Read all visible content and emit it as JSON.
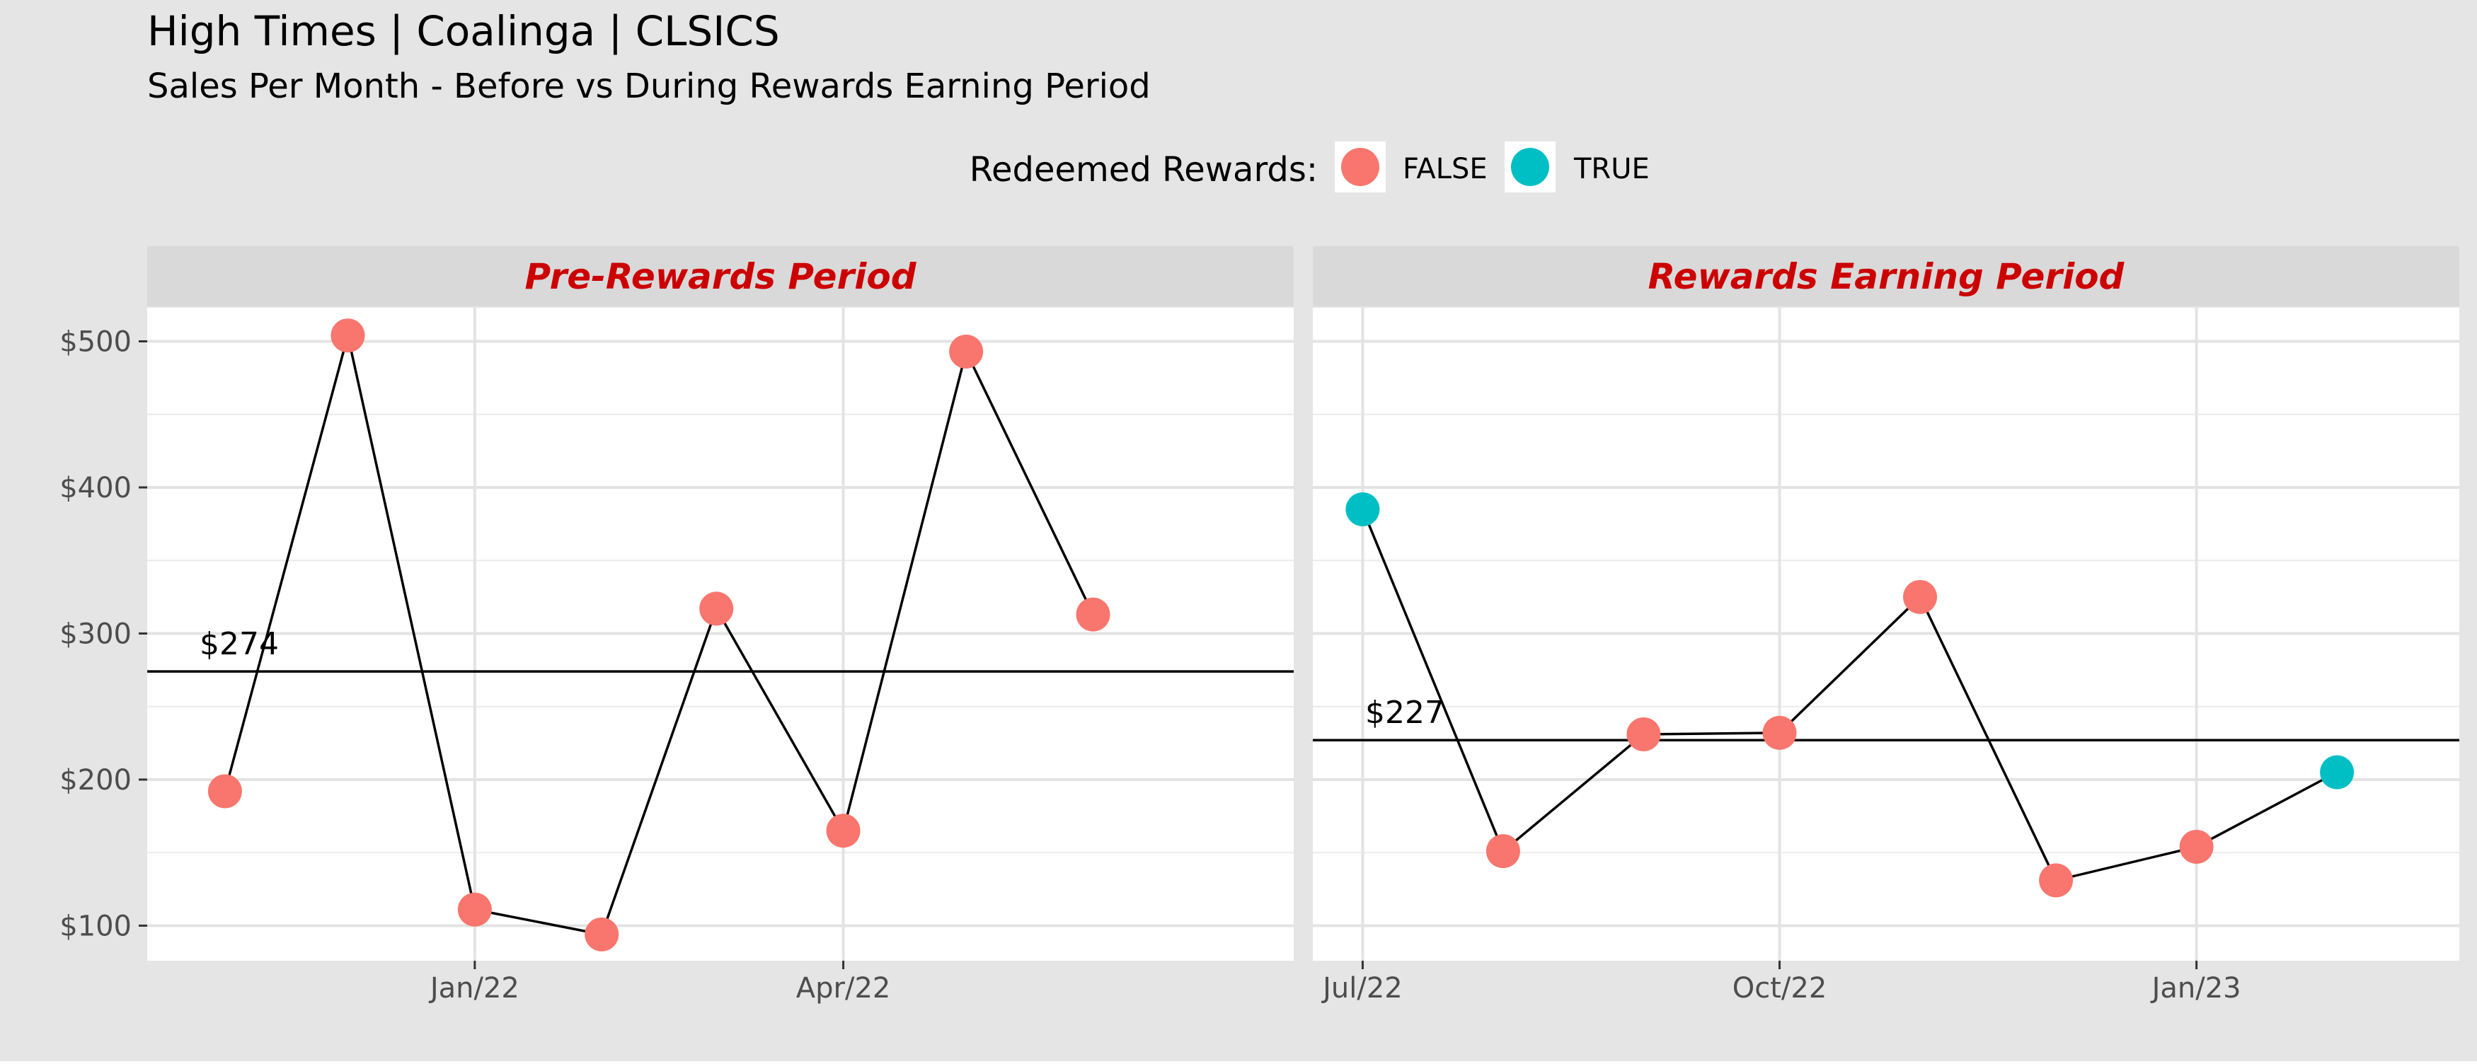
{
  "chart_data": {
    "type": "line",
    "title": "High Times | Coalinga | CLSICS",
    "subtitle": "Sales Per Month - Before vs During Rewards Earning Period",
    "legend": {
      "title": "Redeemed Rewards:",
      "placement": "top",
      "entries": [
        {
          "label": "FALSE",
          "color": "#F8766D"
        },
        {
          "label": "TRUE",
          "color": "#00BFC4"
        }
      ]
    },
    "y_ticks": [
      "$100",
      "$200",
      "$300",
      "$400",
      "$500"
    ],
    "ylim": [
      76,
      523
    ],
    "grid": true,
    "panels": [
      {
        "title": "Pre-Rewards Period",
        "x_ticks": [
          {
            "label": "Jan/22",
            "date": "2022-01-01"
          },
          {
            "label": "Apr/22",
            "date": "2022-04-01"
          }
        ],
        "xlim": [
          "2021-10-13",
          "2022-07-20"
        ],
        "mean": 274,
        "mean_label": "$274",
        "points": [
          {
            "date": "2021-11-01",
            "value": 192,
            "redeemed": false
          },
          {
            "date": "2021-12-01",
            "value": 504,
            "redeemed": false
          },
          {
            "date": "2022-01-01",
            "value": 111,
            "redeemed": false
          },
          {
            "date": "2022-02-01",
            "value": 94,
            "redeemed": false
          },
          {
            "date": "2022-03-01",
            "value": 317,
            "redeemed": false
          },
          {
            "date": "2022-04-01",
            "value": 165,
            "redeemed": false
          },
          {
            "date": "2022-05-01",
            "value": 493,
            "redeemed": false
          },
          {
            "date": "2022-06-01",
            "value": 313,
            "redeemed": false
          }
        ]
      },
      {
        "title": "Rewards Earning Period",
        "x_ticks": [
          {
            "label": "Jul/22",
            "date": "2022-07-01"
          },
          {
            "label": "Oct/22",
            "date": "2022-10-01"
          },
          {
            "label": "Jan/23",
            "date": "2023-01-01"
          }
        ],
        "xlim": [
          "2022-06-20",
          "2023-02-28"
        ],
        "mean": 227,
        "mean_label": "$227",
        "points": [
          {
            "date": "2022-07-01",
            "value": 385,
            "redeemed": true
          },
          {
            "date": "2022-08-01",
            "value": 151,
            "redeemed": false
          },
          {
            "date": "2022-09-01",
            "value": 231,
            "redeemed": false
          },
          {
            "date": "2022-10-01",
            "value": 232,
            "redeemed": false
          },
          {
            "date": "2022-11-01",
            "value": 325,
            "redeemed": false
          },
          {
            "date": "2022-12-01",
            "value": 131,
            "redeemed": false
          },
          {
            "date": "2023-01-01",
            "value": 154,
            "redeemed": false
          },
          {
            "date": "2023-02-01",
            "value": 205,
            "redeemed": true
          }
        ]
      }
    ]
  }
}
